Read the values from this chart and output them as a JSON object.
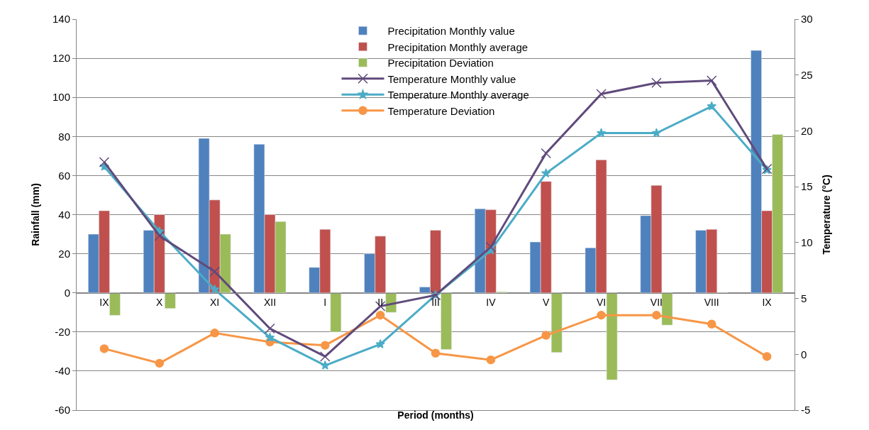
{
  "chart_data": {
    "type": "bar",
    "xlabel": "Period (months)",
    "ylabel": "Rainfall (mm)",
    "y2label": "Temperature (°C)",
    "categories": [
      "IX",
      "X",
      "XI",
      "XII",
      "I",
      "II",
      "III",
      "IV",
      "V",
      "VI",
      "VII",
      "VIII",
      "IX"
    ],
    "series": [
      {
        "name": "Precipitation Monthly value",
        "color": "#4f81bd",
        "values": [
          30,
          32,
          79,
          76,
          13,
          20,
          3,
          43,
          26,
          23,
          39.5,
          32,
          124
        ]
      },
      {
        "name": "Precipitation Monthly average",
        "color": "#c0504d",
        "values": [
          42,
          40,
          47.5,
          40,
          32.5,
          29,
          32,
          42.5,
          57,
          68,
          55,
          32.5,
          42
        ]
      },
      {
        "name": "Precipitation Deviation",
        "color": "#9bbb59",
        "values": [
          -11.5,
          -8,
          30,
          36.5,
          -20,
          -10,
          -29,
          0.5,
          -30.5,
          -44.5,
          -16.5,
          -0.5,
          81
        ]
      },
      {
        "name": "Temperature Monthly value",
        "type": "line",
        "axis": "y2",
        "marker": "cross",
        "color": "#604a7b",
        "values": [
          17.2,
          10.6,
          7.4,
          2.3,
          -0.2,
          4.3,
          5.3,
          9.6,
          18.0,
          23.3,
          24.3,
          24.5,
          16.6
        ]
      },
      {
        "name": "Temperature Monthly average",
        "type": "line",
        "axis": "y2",
        "marker": "star",
        "color": "#4bacc6",
        "values": [
          16.8,
          11.0,
          5.8,
          1.5,
          -1.0,
          0.9,
          5.3,
          9.3,
          16.2,
          19.8,
          19.8,
          22.2,
          16.5
        ]
      },
      {
        "name": "Temperature Deviation",
        "type": "line",
        "axis": "y2",
        "marker": "circle",
        "color": "#f79646",
        "values": [
          0.5,
          -0.8,
          1.9,
          1.1,
          0.8,
          3.5,
          0.1,
          -0.5,
          1.7,
          3.5,
          3.5,
          2.7,
          -0.2
        ]
      }
    ],
    "ylim": [
      -60,
      140
    ],
    "yticks": [
      -60,
      -40,
      -20,
      0,
      20,
      40,
      60,
      80,
      100,
      120,
      140
    ],
    "y2lim": [
      -5,
      30
    ],
    "y2ticks": [
      -5,
      0,
      5,
      10,
      15,
      20,
      25,
      30
    ],
    "grid": "y",
    "legend": "top"
  }
}
